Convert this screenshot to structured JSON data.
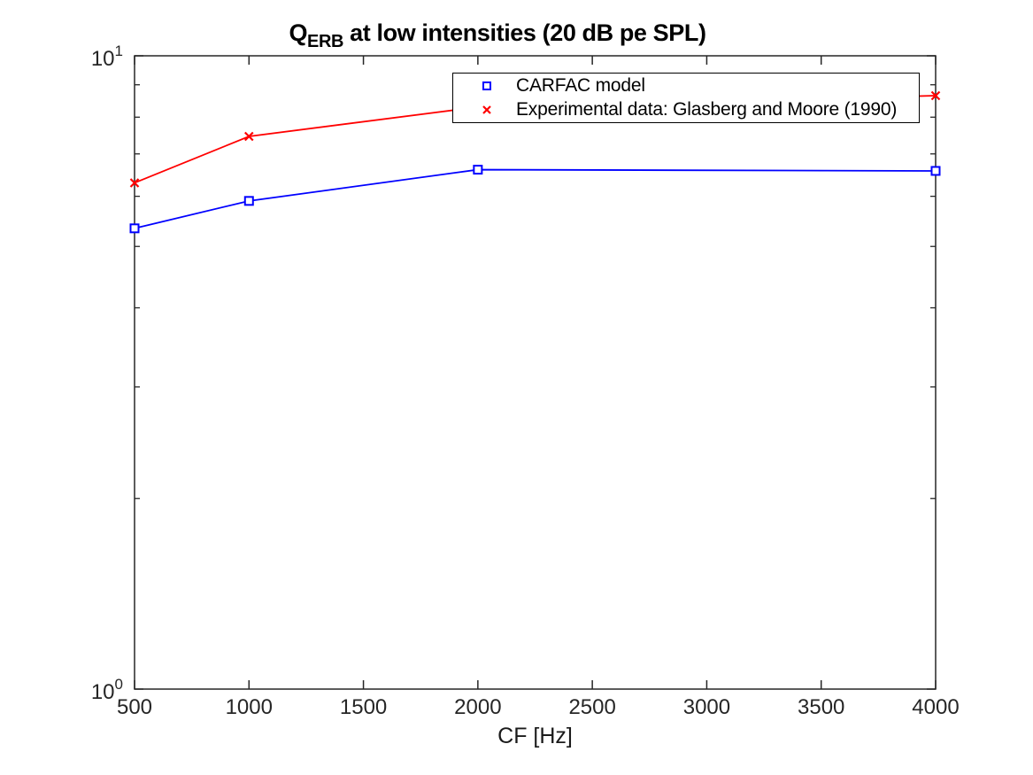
{
  "chart_data": {
    "type": "line",
    "title_prefix": "Q",
    "title_subscript": "ERB",
    "title_suffix": " at low intensities (20 dB pe SPL)",
    "xlabel": "CF [Hz]",
    "x_scale": "linear",
    "y_scale": "log",
    "xlim": [
      500,
      4000
    ],
    "ylim": [
      1,
      10
    ],
    "x_ticks": [
      500,
      1000,
      1500,
      2000,
      2500,
      3000,
      3500,
      4000
    ],
    "x_tick_labels": [
      "500",
      "1000",
      "1500",
      "2000",
      "2500",
      "3000",
      "3500",
      "4000"
    ],
    "y_major_ticks": [
      {
        "value": 1,
        "base": "10",
        "exponent": "0"
      },
      {
        "value": 10,
        "base": "10",
        "exponent": "1"
      }
    ],
    "y_minor_ticks": [
      2,
      3,
      4,
      5,
      6,
      7,
      8,
      9
    ],
    "grid": false,
    "x": [
      500,
      1000,
      2000,
      4000
    ],
    "series": [
      {
        "name": "CARFAC model",
        "color": "#0000ff",
        "marker": "square",
        "values": [
          5.34,
          5.9,
          6.61,
          6.58
        ]
      },
      {
        "name": "Experimental data: Glasberg and Moore (1990)",
        "color": "#ff0000",
        "marker": "x",
        "values": [
          6.3,
          7.46,
          8.3,
          8.65
        ]
      }
    ],
    "legend_position": "upper center-right, inside axes"
  },
  "colors": {
    "background": "#ffffff",
    "axis_frame": "#262626",
    "tick_text": "#262626",
    "title_text": "#000000",
    "series_blue": "#0000ff",
    "series_red": "#ff0000"
  }
}
